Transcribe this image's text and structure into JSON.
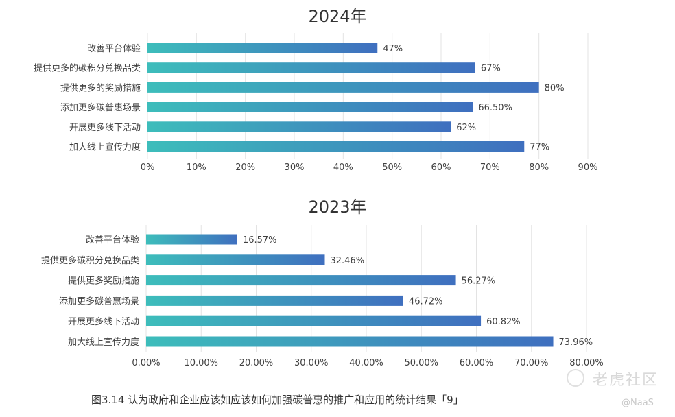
{
  "caption": "图3.14 认为政府和企业应该如应该如何加强碳普惠的推广和应用的统计结果「9」",
  "watermark": {
    "logo_text": "老虎社区",
    "handle": "@NaaS"
  },
  "colors": {
    "bar_start": "#3dbdbb",
    "bar_end": "#3f6fbf",
    "grid": "#e3e3e3"
  },
  "chart_data": [
    {
      "type": "bar",
      "orientation": "horizontal",
      "title": "2024年",
      "categories": [
        "改善平台体验",
        "提供更多的碳积分兑换品类",
        "提供更多的奖励措施",
        "添加更多碳普惠场景",
        "开展更多线下活动",
        "加大线上宣传力度"
      ],
      "values": [
        47,
        67,
        80,
        66.5,
        62,
        77
      ],
      "value_labels": [
        "47%",
        "67%",
        "80%",
        "66.50%",
        "62%",
        "77%"
      ],
      "xlim": [
        0,
        90
      ],
      "xticks": [
        "0%",
        "10%",
        "20%",
        "30%",
        "40%",
        "50%",
        "60%",
        "70%",
        "80%",
        "90%"
      ],
      "grid": true
    },
    {
      "type": "bar",
      "orientation": "horizontal",
      "title": "2023年",
      "categories": [
        "改善平台体验",
        "提供更多碳积分兑换品类",
        "提供更多奖励措施",
        "添加更多碳普惠场景",
        "开展更多线下活动",
        "加大线上宣传力度"
      ],
      "values": [
        16.57,
        32.46,
        56.27,
        46.72,
        60.82,
        73.96
      ],
      "value_labels": [
        "16.57%",
        "32.46%",
        "56.27%",
        "46.72%",
        "60.82%",
        "73.96%"
      ],
      "xlim": [
        0,
        80
      ],
      "xticks": [
        "0.00%",
        "10.00%",
        "20.00%",
        "30.00%",
        "40.00%",
        "50.00%",
        "60.00%",
        "70.00%",
        "80.00%"
      ],
      "grid": true
    }
  ]
}
